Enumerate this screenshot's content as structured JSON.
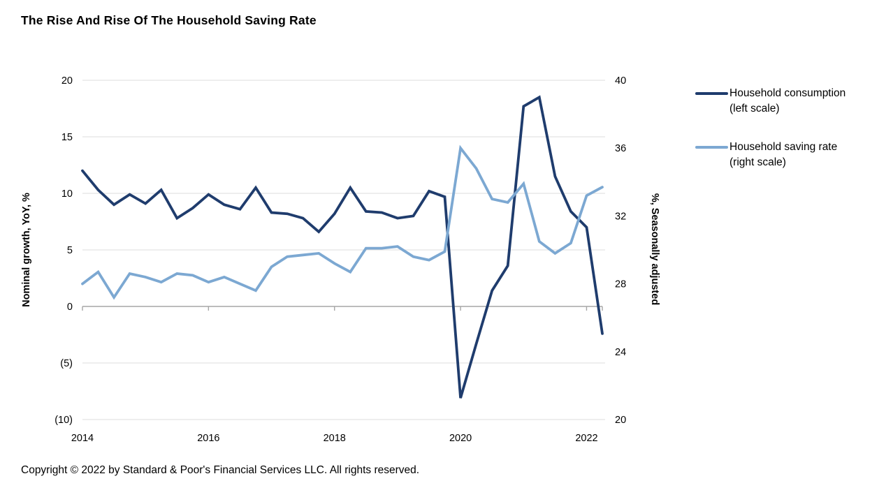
{
  "title": "The Rise And Rise Of The Household Saving Rate",
  "footer": {
    "copyright": "Copyright © 2022 by Standard & Poor's Financial Services LLC. All rights reserved."
  },
  "legend": [
    {
      "label": "Household consumption",
      "sublabel": "(left scale)",
      "color": "#1F3C6D"
    },
    {
      "label": "Household saving rate",
      "sublabel": "(right scale)",
      "color": "#7CA8D2"
    }
  ],
  "chart_data": {
    "type": "line",
    "grid": true,
    "legend_position": "right",
    "background": "#FFFFFF",
    "gridline_color": "#DCDCDC",
    "zero_axis_color": "#A6A6A6",
    "categories": [
      "2014Q1",
      "2014Q2",
      "2014Q3",
      "2014Q4",
      "2015Q1",
      "2015Q2",
      "2015Q3",
      "2015Q4",
      "2016Q1",
      "2016Q2",
      "2016Q3",
      "2016Q4",
      "2017Q1",
      "2017Q2",
      "2017Q3",
      "2017Q4",
      "2018Q1",
      "2018Q2",
      "2018Q3",
      "2018Q4",
      "2019Q1",
      "2019Q2",
      "2019Q3",
      "2019Q4",
      "2020Q1",
      "2020Q2",
      "2020Q3",
      "2020Q4",
      "2021Q1",
      "2021Q2",
      "2021Q3",
      "2021Q4",
      "2022Q1",
      "2022Q2"
    ],
    "x_tick_labels": [
      "2014",
      "2016",
      "2018",
      "2020",
      "2022"
    ],
    "x_tick_indices": [
      0,
      8,
      16,
      24,
      32
    ],
    "left_axis": {
      "title": "Nominal growth, YoY, %",
      "ticks": [
        20,
        15,
        10,
        5,
        0,
        -5,
        -10
      ],
      "range": [
        -10,
        20
      ],
      "negative_format": "parentheses"
    },
    "right_axis": {
      "title": "%, Seasonally adjusted",
      "ticks": [
        40,
        36,
        32,
        28,
        24,
        20
      ],
      "range": [
        20,
        40
      ]
    },
    "series": [
      {
        "name": "Household consumption (left scale)",
        "axis": "left",
        "color": "#1F3C6D",
        "values": [
          12.0,
          10.3,
          9.0,
          9.9,
          9.1,
          10.3,
          7.8,
          8.7,
          9.9,
          9.0,
          8.6,
          10.5,
          8.3,
          8.2,
          7.8,
          6.6,
          8.2,
          10.5,
          8.4,
          8.3,
          7.8,
          8.0,
          10.2,
          9.7,
          -8.1,
          -3.3,
          1.4,
          3.6,
          17.7,
          18.5,
          11.5,
          8.4,
          7.0,
          -2.4
        ]
      },
      {
        "name": "Household saving rate (right scale)",
        "axis": "right",
        "color": "#7CA8D2",
        "values": [
          28.0,
          28.7,
          27.2,
          28.6,
          28.4,
          28.1,
          28.6,
          28.5,
          28.1,
          28.4,
          28.0,
          27.6,
          29.0,
          29.6,
          29.7,
          29.8,
          29.2,
          28.7,
          30.1,
          30.1,
          30.2,
          29.6,
          29.4,
          29.9,
          36.0,
          34.8,
          33.0,
          32.8,
          33.9,
          30.5,
          29.8,
          30.4,
          33.2,
          33.7
        ]
      }
    ]
  }
}
